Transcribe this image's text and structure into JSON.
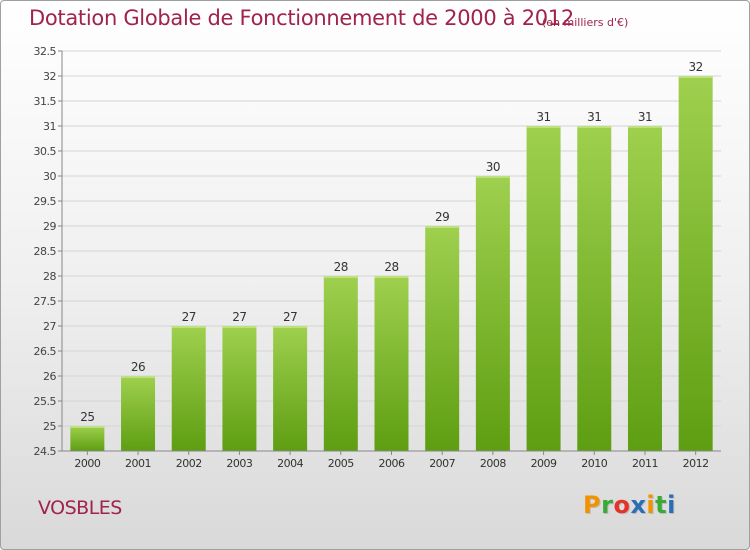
{
  "title": "Dotation Globale de Fonctionnement de 2000 à 2012",
  "subtitle": "(en milliers d'€)",
  "commune": "VOSBLES",
  "logo": {
    "text": "Proxiti",
    "letters": [
      "P",
      "r",
      "o",
      "x",
      "i",
      "t",
      "i"
    ],
    "colors": [
      "#f39200",
      "#3aaa35",
      "#e6332a",
      "#2a6fb5",
      "#f39200",
      "#3aaa35",
      "#2a6fb5"
    ]
  },
  "colors": {
    "title": "#a0234a",
    "bar_top": "#9fd04f",
    "bar_bottom": "#5e9e12",
    "grid": "#d4d4d4",
    "axis": "#888888"
  },
  "chart_data": {
    "type": "bar",
    "title": "Dotation Globale de Fonctionnement de 2000 à 2012",
    "xlabel": "",
    "ylabel": "",
    "categories": [
      "2000",
      "2001",
      "2002",
      "2003",
      "2004",
      "2005",
      "2006",
      "2007",
      "2008",
      "2009",
      "2010",
      "2011",
      "2012"
    ],
    "values": [
      25,
      26,
      27,
      27,
      27,
      28,
      28,
      29,
      30,
      31,
      31,
      31,
      32
    ],
    "ylim": [
      24.5,
      32.5
    ],
    "yticks": [
      "24.5",
      "25",
      "25.5",
      "26",
      "26.5",
      "27",
      "27.5",
      "28",
      "28.5",
      "29",
      "29.5",
      "30",
      "30.5",
      "31",
      "31.5",
      "32",
      "32.5"
    ],
    "grid": true
  }
}
